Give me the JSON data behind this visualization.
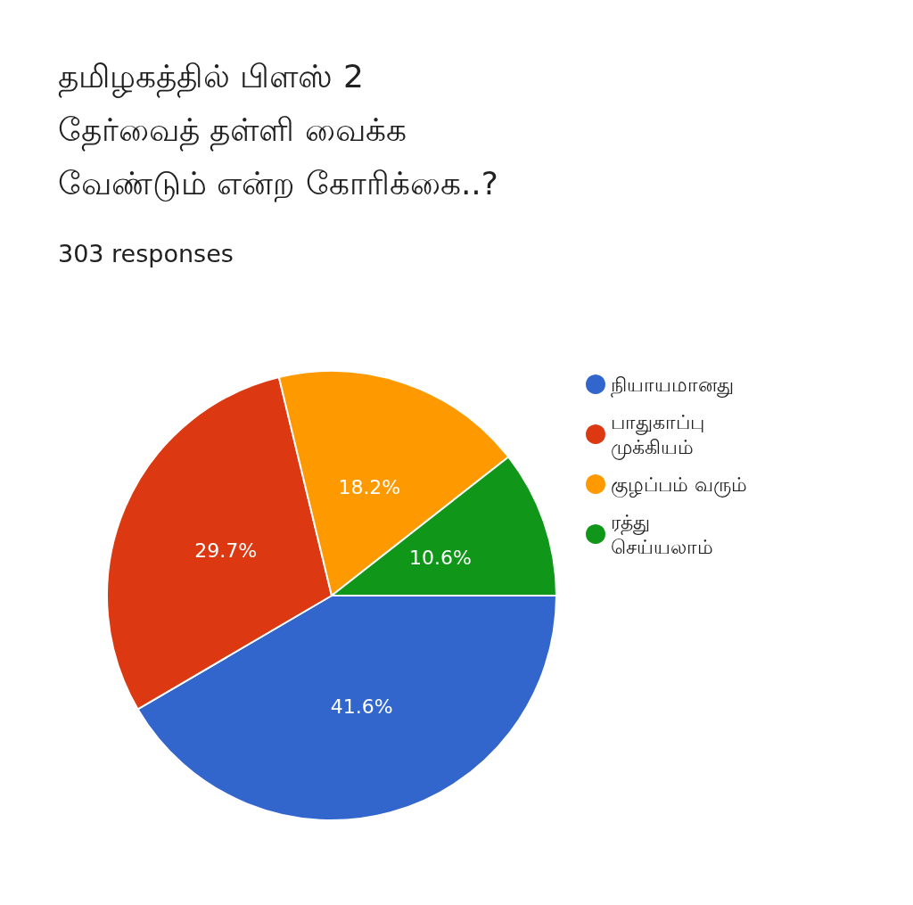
{
  "chart_data": {
    "type": "pie",
    "title": "தமிழகத்தில் பிளஸ் 2 தேர்வைத் தள்ளி வைக்க வேண்டும் என்ற கோரிக்கை..?",
    "subtitle": "303 responses",
    "categories": [
      "நியாயமானது",
      "பாதுகாப்பு முக்கியம்",
      "குழப்பம் வரும்",
      "ரத்து செய்யலாம்"
    ],
    "values": [
      41.6,
      29.7,
      18.2,
      10.6
    ],
    "value_labels": [
      "41.6%",
      "29.7%",
      "18.2%",
      "10.6%"
    ],
    "colors": [
      "#3366cc",
      "#dc3912",
      "#ff9900",
      "#109618"
    ],
    "legend": "right"
  }
}
